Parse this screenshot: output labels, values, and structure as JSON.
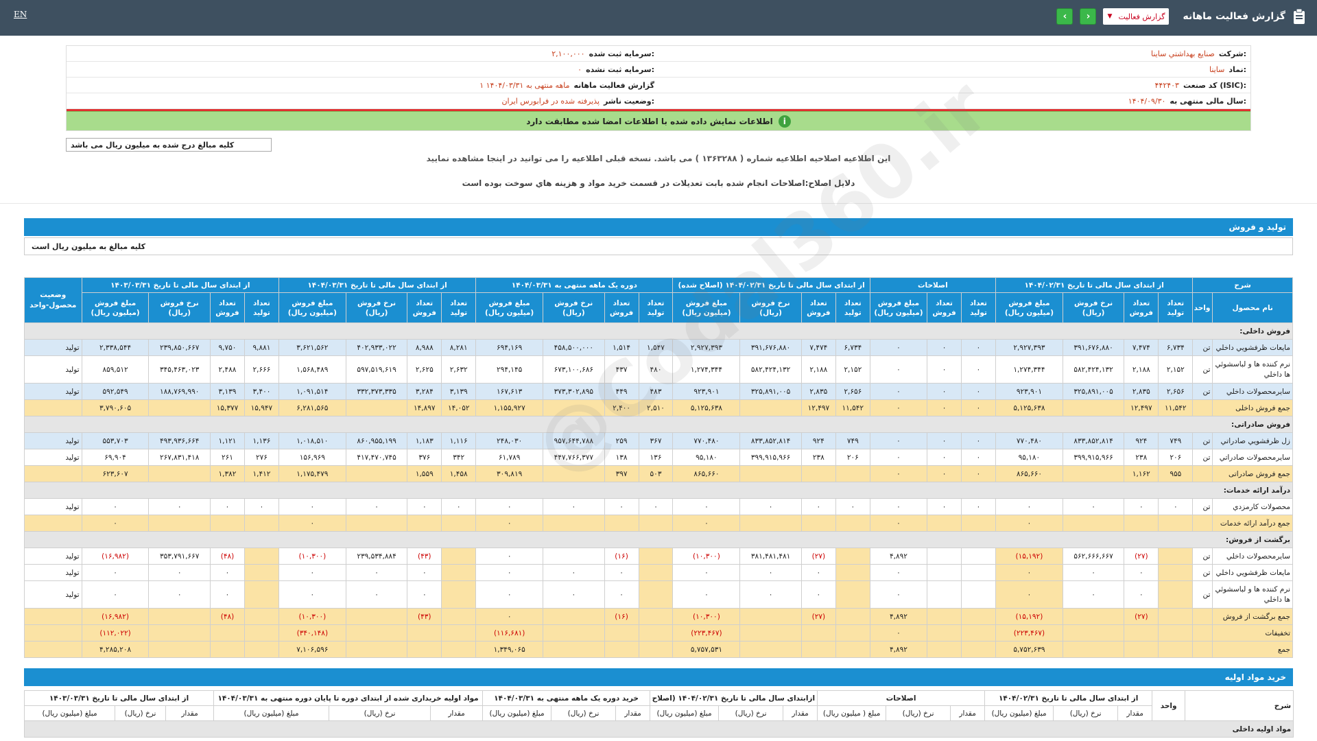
{
  "topbar": {
    "lang": "EN",
    "title": "گزارش فعالیت ماهانه",
    "report_select": "گزارش فعالیت",
    "prev": "‹",
    "next": "›"
  },
  "info": {
    "company_label": "شرکت:",
    "company": "صنایع بهداشتي ساینا",
    "symbol_label": "نماد:",
    "symbol": "ساینا",
    "isic_label": "کد صنعت (ISIC):",
    "isic": "۴۴۲۴۰۳",
    "fiscal_label": "سال مالی منتهی به:",
    "fiscal": "۱۴۰۴/۰۹/۳۰",
    "capital_label": "سرمایه ثبت شده:",
    "capital": "۲,۱۰۰,۰۰۰",
    "unreg_capital_label": "سرمایه ثبت نشده:",
    "unreg_capital": "۰",
    "period_label": "گزارش فعالیت ماهانه",
    "period": "۱ ماهه منتهی به ۱۴۰۴/۰۳/۳۱",
    "status_label": "وضعیت ناشر:",
    "status": "پذیرفته شده در فرابورس ایران",
    "notice": "اطلاعات نمایش داده شده با اطلاعات امضا شده مطابقت دارد"
  },
  "unit_note": "کلیه مبالغ درج شده به میلیون ریال می باشد",
  "msg1": "این اطلاعیه اصلاحیه اطلاعیه شماره ( ۱۳۶۳۲۸۸ ) می باشد. نسخه قبلی اطلاعیه را می توانید در اینجا مشاهده نمایید",
  "msg2": "دلایل اصلاح:اصلاحات انجام شده بابت تعدیلات در قسمت خرید مواد و هزینه هاي سوخت بوده است",
  "section1": {
    "title": "تولید و فروش",
    "subtitle": "کلیه مبالغ به میلیون ریال است"
  },
  "table": {
    "groups": [
      "شرح",
      "از ابتدای سال مالی تا تاریخ ۱۴۰۴/۰۲/۳۱",
      "اصلاحات",
      "از ابتدای سال مالی تا تاریخ ۱۴۰۴/۰۲/۳۱ (اصلاح شده)",
      "دوره یک ماهه منتهی به ۱۴۰۴/۰۳/۳۱",
      "از ابتدای سال مالی تا تاریخ ۱۴۰۴/۰۳/۳۱",
      "از ابتدای سال مالی تا تاریخ ۱۴۰۳/۰۳/۳۱",
      "وضعیت محصول-واحد"
    ],
    "sub": {
      "name": "نام محصول",
      "unit": "واحد",
      "prod_qty": "تعداد تولید",
      "sale_qty": "تعداد فروش",
      "rate": "نرخ فروش (ریال)",
      "amount": "مبلغ فروش (میلیون ریال)"
    },
    "rows": [
      {
        "type": "group",
        "name": "فروش داخلی:"
      },
      {
        "type": "blue",
        "name": "مایعات ظرفشويي داخلي",
        "unit": "تن",
        "c": [
          "۶,۷۳۴",
          "۷,۴۷۴",
          "۳۹۱,۶۷۶,۸۸۰",
          "۲,۹۲۷,۳۹۳",
          "۰",
          "۰",
          "۰",
          "۶,۷۳۴",
          "۷,۴۷۴",
          "۳۹۱,۶۷۶,۸۸۰",
          "۲,۹۲۷,۳۹۳",
          "۱,۵۴۷",
          "۱,۵۱۴",
          "۴۵۸,۵۰۰,۰۰۰",
          "۶۹۴,۱۶۹",
          "۸,۲۸۱",
          "۸,۹۸۸",
          "۴۰۲,۹۳۳,۰۲۲",
          "۳,۶۲۱,۵۶۲",
          "۹,۸۸۱",
          "۹,۷۵۰",
          "۲۳۹,۸۵۰,۶۶۷",
          "۲,۳۳۸,۵۴۴"
        ],
        "status": "تولید"
      },
      {
        "type": "white tall",
        "name": "نرم کننده ها و لباسشوئي ها داخلي",
        "unit": "تن",
        "c": [
          "۲,۱۵۲",
          "۲,۱۸۸",
          "۵۸۲,۴۲۴,۱۳۲",
          "۱,۲۷۴,۳۴۴",
          "۰",
          "۰",
          "۰",
          "۲,۱۵۲",
          "۲,۱۸۸",
          "۵۸۲,۴۲۴,۱۳۲",
          "۱,۲۷۴,۳۴۴",
          "۴۸۰",
          "۴۳۷",
          "۶۷۳,۱۰۰,۶۸۶",
          "۲۹۴,۱۴۵",
          "۲,۶۳۲",
          "۲,۶۲۵",
          "۵۹۷,۵۱۹,۶۱۹",
          "۱,۵۶۸,۴۸۹",
          "۲,۶۶۶",
          "۲,۴۸۸",
          "۳۴۵,۴۶۳,۰۲۳",
          "۸۵۹,۵۱۲"
        ],
        "status": "تولید"
      },
      {
        "type": "blue",
        "name": "سایرمحصولات داخلي",
        "unit": "تن",
        "c": [
          "۲,۶۵۶",
          "۲,۸۳۵",
          "۳۲۵,۸۹۱,۰۰۵",
          "۹۲۳,۹۰۱",
          "۰",
          "۰",
          "۰",
          "۲,۶۵۶",
          "۲,۸۳۵",
          "۳۲۵,۸۹۱,۰۰۵",
          "۹۲۳,۹۰۱",
          "۴۸۳",
          "۴۴۹",
          "۳۷۳,۳۰۲,۸۹۵",
          "۱۶۷,۶۱۳",
          "۳,۱۳۹",
          "۳,۲۸۴",
          "۳۳۲,۳۷۳,۳۳۵",
          "۱,۰۹۱,۵۱۴",
          "۳,۴۰۰",
          "۳,۱۳۹",
          "۱۸۸,۷۶۹,۹۹۰",
          "۵۹۲,۵۴۹"
        ],
        "status": "تولید"
      },
      {
        "type": "sum",
        "name": "جمع فروش داخلی",
        "unit": "",
        "c": [
          "۱۱,۵۴۲",
          "۱۲,۴۹۷",
          "",
          "۵,۱۲۵,۶۳۸",
          "۰",
          "۰",
          "۰",
          "۱۱,۵۴۲",
          "۱۲,۴۹۷",
          "",
          "۵,۱۲۵,۶۳۸",
          "۲,۵۱۰",
          "۲,۴۰۰",
          "",
          "۱,۱۵۵,۹۲۷",
          "۱۴,۰۵۲",
          "۱۴,۸۹۷",
          "",
          "۶,۲۸۱,۵۶۵",
          "۱۵,۹۴۷",
          "۱۵,۳۷۷",
          "",
          "۳,۷۹۰,۶۰۵"
        ],
        "status": ""
      },
      {
        "type": "group",
        "name": "فروش صادراتی:"
      },
      {
        "type": "blue",
        "name": "زل ظرفشويي صادراتي",
        "unit": "تن",
        "c": [
          "۷۴۹",
          "۹۲۴",
          "۸۳۳,۸۵۲,۸۱۴",
          "۷۷۰,۴۸۰",
          "۰",
          "۰",
          "۰",
          "۷۴۹",
          "۹۲۴",
          "۸۳۳,۸۵۲,۸۱۴",
          "۷۷۰,۴۸۰",
          "۳۶۷",
          "۲۵۹",
          "۹۵۷,۶۴۴,۷۸۸",
          "۲۴۸,۰۳۰",
          "۱,۱۱۶",
          "۱,۱۸۳",
          "۸۶۰,۹۵۵,۱۹۹",
          "۱,۰۱۸,۵۱۰",
          "۱,۱۳۶",
          "۱,۱۲۱",
          "۴۹۳,۹۳۶,۶۶۴",
          "۵۵۳,۷۰۳"
        ],
        "status": "تولید"
      },
      {
        "type": "white",
        "name": "سايرمحصولات صادراتي",
        "unit": "تن",
        "c": [
          "۲۰۶",
          "۲۳۸",
          "۳۹۹,۹۱۵,۹۶۶",
          "۹۵,۱۸۰",
          "۰",
          "۰",
          "۰",
          "۲۰۶",
          "۲۳۸",
          "۳۹۹,۹۱۵,۹۶۶",
          "۹۵,۱۸۰",
          "۱۳۶",
          "۱۳۸",
          "۴۴۷,۷۶۶,۳۷۷",
          "۶۱,۷۸۹",
          "۳۴۲",
          "۳۷۶",
          "۴۱۷,۴۷۰,۷۴۵",
          "۱۵۶,۹۶۹",
          "۲۷۶",
          "۲۶۱",
          "۲۶۷,۸۳۱,۴۱۸",
          "۶۹,۹۰۴"
        ],
        "status": "تولید"
      },
      {
        "type": "sum",
        "name": "جمع فروش صادراتی",
        "unit": "",
        "c": [
          "۹۵۵",
          "۱,۱۶۲",
          "",
          "۸۶۵,۶۶۰",
          "۰",
          "۰",
          "۰",
          "",
          "",
          "",
          "۸۶۵,۶۶۰",
          "۵۰۳",
          "۳۹۷",
          "",
          "۳۰۹,۸۱۹",
          "۱,۴۵۸",
          "۱,۵۵۹",
          "",
          "۱,۱۷۵,۴۷۹",
          "۱,۴۱۲",
          "۱,۳۸۲",
          "",
          "۶۲۳,۶۰۷"
        ],
        "status": ""
      },
      {
        "type": "group",
        "name": "درآمد ارائه خدمات:"
      },
      {
        "type": "white",
        "name": "محصولات کارمزدي",
        "unit": "تن",
        "c": [
          "۰",
          "۰",
          "۰",
          "۰",
          "۰",
          "۰",
          "۰",
          "۰",
          "۰",
          "۰",
          "۰",
          "۰",
          "۰",
          "۰",
          "۰",
          "۰",
          "۰",
          "۰",
          "۰",
          "۰",
          "۰",
          "۰",
          "۰"
        ],
        "status": "تولید"
      },
      {
        "type": "sum",
        "name": "جمع درآمد ارائه خدمات",
        "unit": "",
        "c": [
          "",
          "",
          "",
          "۰",
          "",
          "",
          "۰",
          "",
          "",
          "",
          "۰",
          "",
          "",
          "",
          "۰",
          "",
          "",
          "",
          "۰",
          "",
          "",
          "",
          "۰"
        ],
        "status": ""
      },
      {
        "type": "group",
        "name": "برگشت از فروش:"
      },
      {
        "type": "white",
        "name": "سایرمحصولات داخلي",
        "unit": "تن",
        "c": [
          "",
          "(۲۷)",
          "۵۶۲,۶۶۶,۶۶۷",
          "(۱۵,۱۹۲)",
          "",
          "",
          "۴,۸۹۲",
          "",
          "(۲۷)",
          "۳۸۱,۴۸۱,۴۸۱",
          "(۱۰,۳۰۰)",
          "",
          "(۱۶)",
          "",
          "۰",
          "",
          "(۴۳)",
          "۲۳۹,۵۳۴,۸۸۴",
          "(۱۰,۳۰۰)",
          "",
          "(۴۸)",
          "۳۵۳,۷۹۱,۶۶۷",
          "(۱۶,۹۸۲)"
        ],
        "status": "تولید"
      },
      {
        "type": "white",
        "name": "مایعات ظرفشويي داخلي",
        "unit": "تن",
        "c": [
          "",
          "۰",
          "۰",
          "۰",
          "",
          "",
          "۰",
          "",
          "۰",
          "۰",
          "۰",
          "",
          "۰",
          "۰",
          "۰",
          "",
          "۰",
          "۰",
          "۰",
          "",
          "۰",
          "۰",
          "۰"
        ],
        "status": "تولید"
      },
      {
        "type": "white tall",
        "name": "نرم کننده ها و لباسشوئي ها داخلي",
        "unit": "تن",
        "c": [
          "",
          "۰",
          "۰",
          "۰",
          "",
          "",
          "۰",
          "",
          "۰",
          "۰",
          "۰",
          "",
          "۰",
          "۰",
          "۰",
          "",
          "۰",
          "۰",
          "۰",
          "",
          "۰",
          "۰",
          "۰"
        ],
        "status": "تولید"
      },
      {
        "type": "sum",
        "name": "جمع برگشت از فروش",
        "unit": "",
        "c": [
          "",
          "(۲۷)",
          "",
          "(۱۵,۱۹۲)",
          "",
          "",
          "۴,۸۹۲",
          "",
          "(۲۷)",
          "",
          "(۱۰,۳۰۰)",
          "",
          "(۱۶)",
          "",
          "۰",
          "",
          "(۴۳)",
          "",
          "(۱۰,۳۰۰)",
          "",
          "(۴۸)",
          "",
          "(۱۶,۹۸۲)"
        ],
        "status": ""
      },
      {
        "type": "sum",
        "name": "تخفیفات",
        "unit": "",
        "c": [
          "",
          "",
          "",
          "(۲۲۳,۴۶۷)",
          "",
          "",
          "۰",
          "",
          "",
          "",
          "(۲۲۳,۴۶۷)",
          "",
          "",
          "",
          "(۱۱۶,۶۸۱)",
          "",
          "",
          "",
          "(۳۴۰,۱۴۸)",
          "",
          "",
          "",
          "(۱۱۲,۰۲۲)"
        ],
        "status": ""
      },
      {
        "type": "sum",
        "name": "جمع",
        "unit": "",
        "c": [
          "",
          "",
          "",
          "۵,۷۵۲,۶۳۹",
          "",
          "",
          "۴,۸۹۲",
          "",
          "",
          "",
          "۵,۷۵۷,۵۳۱",
          "",
          "",
          "",
          "۱,۳۴۹,۰۶۵",
          "",
          "",
          "",
          "۷,۱۰۶,۵۹۶",
          "",
          "",
          "",
          "۴,۲۸۵,۲۰۸"
        ],
        "status": ""
      }
    ]
  },
  "section2": {
    "title": "خرید مواد اولیه",
    "groups": [
      "شرح",
      "واحد",
      "از ابتدای سال مالی تا تاریخ ۱۴۰۴/۰۲/۳۱",
      "اصلاحات",
      "ازابتدای سال مالی تا تاریخ ۱۴۰۴/۰۲/۳۱ (اصلاح شده)",
      "خرید دوره یک ماهه منتهی به ۱۴۰۴/۰۳/۳۱",
      "مواد اولیه خریداری شده از ابتدای دوره تا پایان دوره منتهی به ۱۴۰۴/۰۳/۳۱",
      "از ابتدای سال مالی تا تاریخ ۱۴۰۳/۰۳/۳۱"
    ],
    "sub": {
      "qty": "مقدار",
      "rate": "نرخ (ریال)",
      "amount": "مبلغ (میلیون ریال)",
      "amount2": "مبلغ ( میلیون ریال)"
    },
    "first_row": "مواد اولیه داخلی"
  },
  "watermark": "@Codal360.ir"
}
